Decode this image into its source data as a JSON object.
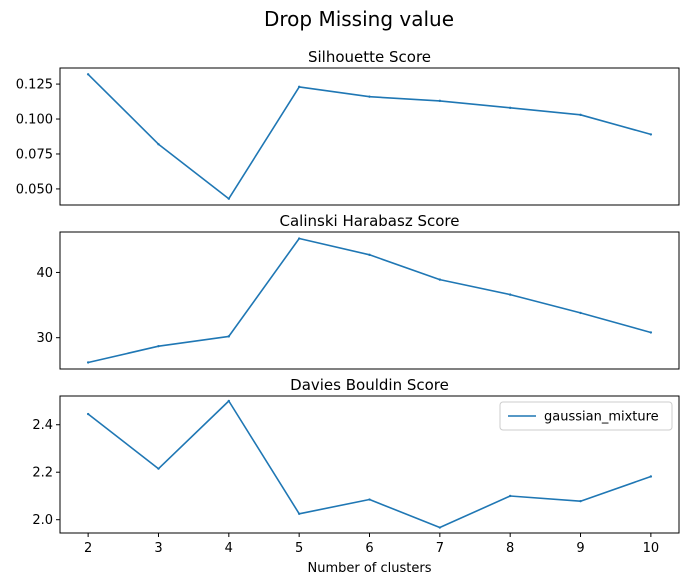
{
  "figure_title": "Drop Missing value",
  "chart_data": [
    {
      "type": "line",
      "title": "Silhouette Score",
      "xlabel": "",
      "ylabel": "",
      "x": [
        2,
        3,
        4,
        5,
        6,
        7,
        8,
        9,
        10
      ],
      "series": [
        {
          "values": [
            0.132,
            0.082,
            0.043,
            0.123,
            0.116,
            0.113,
            0.108,
            0.103,
            0.089
          ],
          "color": "#1f77b4"
        }
      ],
      "ylim": [
        0.0385,
        0.1365
      ],
      "yticks": [
        0.05,
        0.075,
        0.1,
        0.125
      ],
      "ytick_labels": [
        "0.050",
        "0.075",
        "0.100",
        "0.125"
      ],
      "show_xticks": false,
      "grid": false
    },
    {
      "type": "line",
      "title": "Calinski Harabasz Score",
      "xlabel": "",
      "ylabel": "",
      "x": [
        2,
        3,
        4,
        5,
        6,
        7,
        8,
        9,
        10
      ],
      "series": [
        {
          "values": [
            26.2,
            28.7,
            30.2,
            45.2,
            42.7,
            38.9,
            36.6,
            33.8,
            30.8
          ],
          "color": "#1f77b4"
        }
      ],
      "ylim": [
        25.2,
        46.2
      ],
      "yticks": [
        30,
        40
      ],
      "ytick_labels": [
        "30",
        "40"
      ],
      "show_xticks": false,
      "grid": false
    },
    {
      "type": "line",
      "title": "Davies Bouldin Score",
      "xlabel": "Number of clusters",
      "ylabel": "",
      "x": [
        2,
        3,
        4,
        5,
        6,
        7,
        8,
        9,
        10
      ],
      "series": [
        {
          "name": "gaussian_mixture",
          "values": [
            2.445,
            2.215,
            2.5,
            2.025,
            2.085,
            1.967,
            2.1,
            2.078,
            2.182
          ],
          "color": "#1f77b4"
        }
      ],
      "ylim": [
        1.944,
        2.521
      ],
      "yticks": [
        2.0,
        2.2,
        2.4
      ],
      "ytick_labels": [
        "2.0",
        "2.2",
        "2.4"
      ],
      "xticks": [
        2,
        3,
        4,
        5,
        6,
        7,
        8,
        9,
        10
      ],
      "xtick_labels": [
        "2",
        "3",
        "4",
        "5",
        "6",
        "7",
        "8",
        "9",
        "10"
      ],
      "show_xticks": true,
      "legend": "upper-right",
      "grid": false
    }
  ]
}
